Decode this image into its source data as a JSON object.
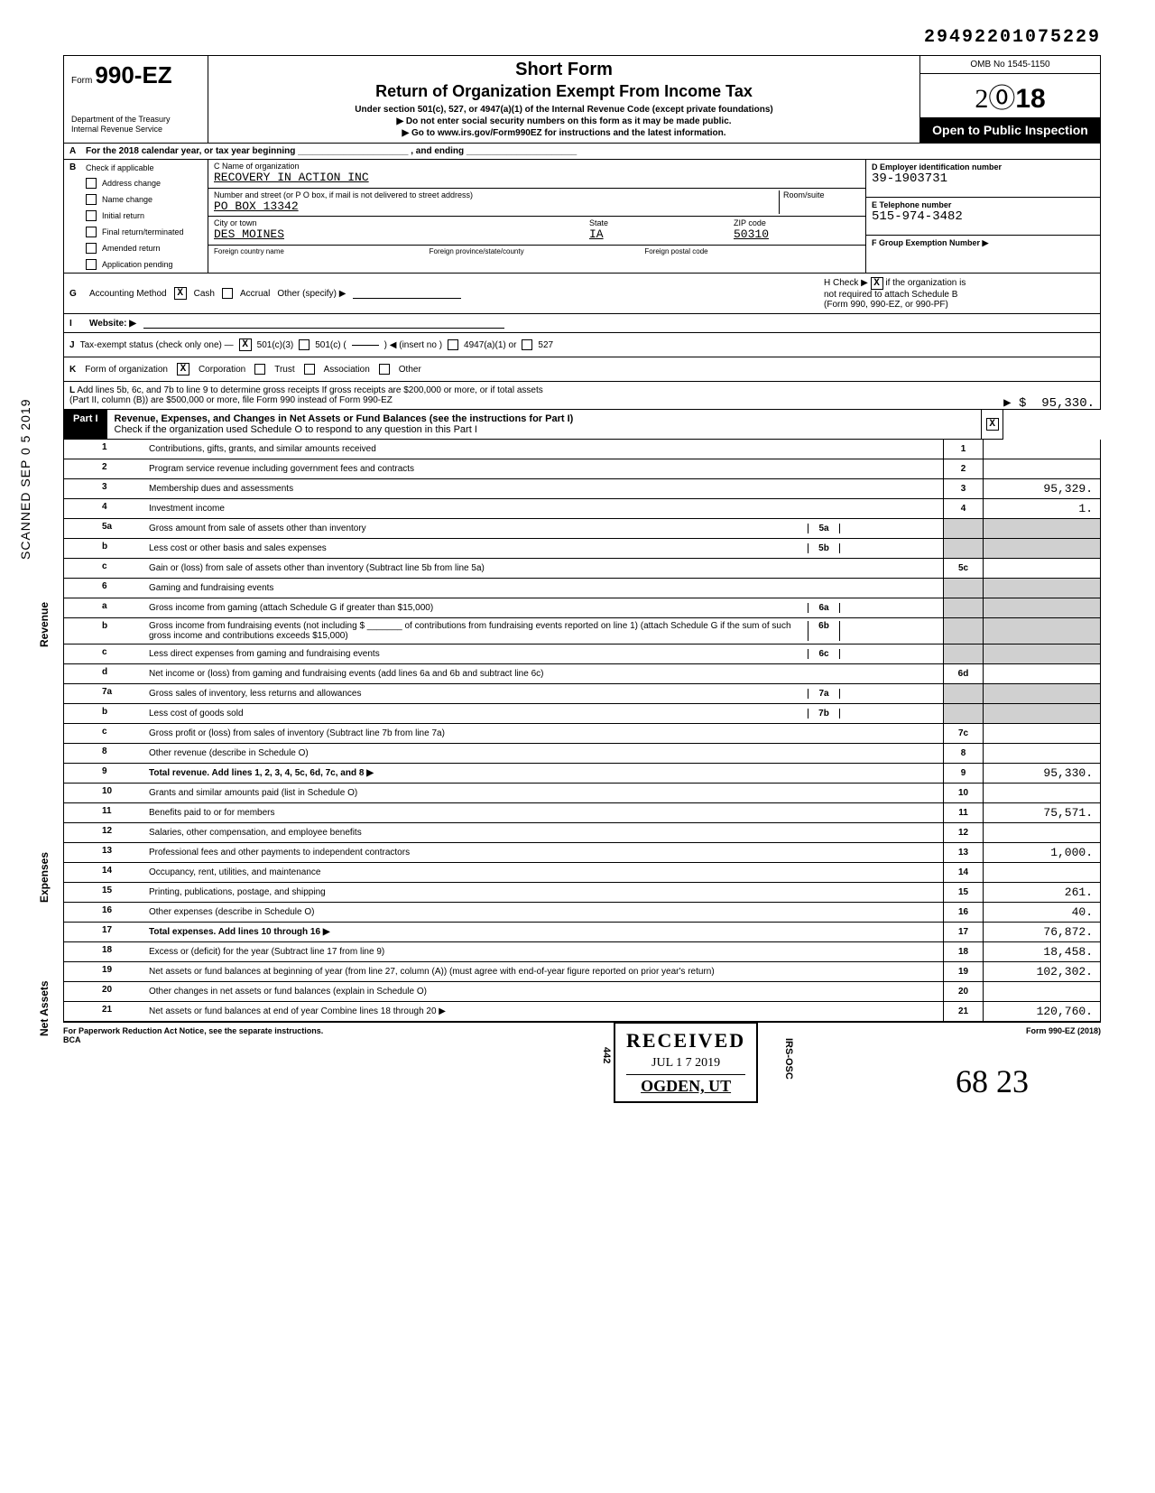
{
  "dln": "29492201075229",
  "header": {
    "form_prefix": "Form",
    "form_number": "990-EZ",
    "title1": "Short Form",
    "title2": "Return of Organization Exempt From Income Tax",
    "subtitle": "Under section 501(c), 527, or 4947(a)(1) of the Internal Revenue Code (except private foundations)",
    "arrow1": "▶  Do not enter social security numbers on this form as it may be made public.",
    "arrow2": "▶  Go to www.irs.gov/Form990EZ for instructions and the latest information.",
    "dept": "Department of the Treasury",
    "irs": "Internal Revenue Service",
    "omb": "OMB No 1545-1150",
    "year": "2018",
    "open": "Open to Public Inspection"
  },
  "rowA": "For the 2018 calendar year, or tax year beginning ______________________ , and ending ______________________",
  "blockB": {
    "b_label": "B",
    "check_label": "Check if applicable",
    "items": [
      "Address change",
      "Name change",
      "Initial return",
      "Final return/terminated",
      "Amended return",
      "Application pending"
    ],
    "c_label": "C  Name of organization",
    "org_name": "RECOVERY IN ACTION INC",
    "street_label": "Number and street (or P O box, if mail is not delivered to street address)",
    "room_label": "Room/suite",
    "street": "PO BOX 13342",
    "city_label": "City or town",
    "state_label": "State",
    "zip_label": "ZIP code",
    "city": "DES MOINES",
    "state": "IA",
    "zip": "50310",
    "foreign1": "Foreign country name",
    "foreign2": "Foreign province/state/county",
    "foreign3": "Foreign postal code",
    "d_label": "D  Employer identification number",
    "ein": "39-1903731",
    "e_label": "E  Telephone number",
    "phone": "515-974-3482",
    "f_label": "F  Group Exemption Number ▶"
  },
  "rowG": {
    "g": "G",
    "acct": "Accounting Method",
    "cash": "Cash",
    "accrual": "Accrual",
    "other": "Other (specify)  ▶",
    "i": "I",
    "website": "Website: ▶",
    "h": "H  Check ▶",
    "h_txt1": "if the organization is",
    "h_txt2": "not required to attach Schedule B",
    "h_txt3": "(Form 990, 990-EZ, or 990-PF)"
  },
  "rowJ": {
    "j": "J",
    "txt": "Tax-exempt status (check only one) —",
    "opt1": "501(c)(3)",
    "opt2": "501(c) (",
    "opt2b": ") ◀ (insert no )",
    "opt3": "4947(a)(1) or",
    "opt4": "527"
  },
  "rowK": {
    "k": "K",
    "txt": "Form of organization",
    "corp": "Corporation",
    "trust": "Trust",
    "assoc": "Association",
    "other": "Other"
  },
  "rowL": {
    "l": "L",
    "txt1": "Add lines 5b, 6c, and 7b to line 9 to determine gross receipts  If gross receipts are $200,000 or more, or if total assets",
    "txt2": "(Part II, column (B)) are $500,000 or more, file Form 990 instead of Form 990-EZ",
    "arrow": "▶ $",
    "amt": "95,330."
  },
  "part1": {
    "tag": "Part I",
    "title": "Revenue, Expenses, and Changes in Net Assets or Fund Balances (see the instructions for Part I)",
    "sub": "Check if the organization used Schedule O to respond to any question in this Part I"
  },
  "sections": {
    "revenue": "Revenue",
    "expenses": "Expenses",
    "netassets": "Net Assets"
  },
  "lines": [
    {
      "n": "1",
      "d": "Contributions, gifts, grants, and similar amounts received",
      "box": "1",
      "amt": ""
    },
    {
      "n": "2",
      "d": "Program service revenue including government fees and contracts",
      "box": "2",
      "amt": ""
    },
    {
      "n": "3",
      "d": "Membership dues and assessments",
      "box": "3",
      "amt": "95,329."
    },
    {
      "n": "4",
      "d": "Investment income",
      "box": "4",
      "amt": "1."
    },
    {
      "n": "5a",
      "d": "Gross amount from sale of assets other than inventory",
      "sub": "5a"
    },
    {
      "n": "b",
      "d": "Less cost or other basis and sales expenses",
      "sub": "5b"
    },
    {
      "n": "c",
      "d": "Gain or (loss) from sale of assets other than inventory (Subtract line 5b from line 5a)",
      "box": "5c",
      "amt": ""
    },
    {
      "n": "6",
      "d": "Gaming and fundraising events"
    },
    {
      "n": "a",
      "d": "Gross income from gaming (attach Schedule G if greater than $15,000)",
      "sub": "6a"
    },
    {
      "n": "b",
      "d": "Gross income from fundraising events (not including   $ _______ of contributions from fundraising events reported on line 1) (attach Schedule G if the sum of such gross income and contributions exceeds $15,000)",
      "sub": "6b"
    },
    {
      "n": "c",
      "d": "Less direct expenses from gaming and fundraising events",
      "sub": "6c"
    },
    {
      "n": "d",
      "d": "Net income or (loss) from gaming and fundraising events (add lines 6a and 6b and subtract line 6c)",
      "box": "6d",
      "amt": ""
    },
    {
      "n": "7a",
      "d": "Gross sales of inventory, less returns and allowances",
      "sub": "7a"
    },
    {
      "n": "b",
      "d": "Less cost of goods sold",
      "sub": "7b"
    },
    {
      "n": "c",
      "d": "Gross profit or (loss) from sales of inventory (Subtract line 7b from line 7a)",
      "box": "7c",
      "amt": ""
    },
    {
      "n": "8",
      "d": "Other revenue (describe in Schedule O)",
      "box": "8",
      "amt": ""
    },
    {
      "n": "9",
      "d": "Total revenue. Add lines 1, 2, 3, 4, 5c, 6d, 7c, and 8",
      "box": "9",
      "amt": "95,330.",
      "bold": true,
      "arrow": true
    },
    {
      "n": "10",
      "d": "Grants and similar amounts paid (list in Schedule O)",
      "box": "10",
      "amt": ""
    },
    {
      "n": "11",
      "d": "Benefits paid to or for members",
      "box": "11",
      "amt": "75,571."
    },
    {
      "n": "12",
      "d": "Salaries, other compensation, and employee benefits",
      "box": "12",
      "amt": ""
    },
    {
      "n": "13",
      "d": "Professional fees and other payments to independent contractors",
      "box": "13",
      "amt": "1,000."
    },
    {
      "n": "14",
      "d": "Occupancy, rent, utilities, and maintenance",
      "box": "14",
      "amt": ""
    },
    {
      "n": "15",
      "d": "Printing, publications, postage, and shipping",
      "box": "15",
      "amt": "261."
    },
    {
      "n": "16",
      "d": "Other expenses (describe in Schedule O)",
      "box": "16",
      "amt": "40."
    },
    {
      "n": "17",
      "d": "Total expenses. Add lines 10 through 16",
      "box": "17",
      "amt": "76,872.",
      "bold": true,
      "arrow": true
    },
    {
      "n": "18",
      "d": "Excess or (deficit) for the year (Subtract line 17 from line 9)",
      "box": "18",
      "amt": "18,458."
    },
    {
      "n": "19",
      "d": "Net assets or fund balances at beginning of year (from line 27, column (A)) (must agree with end-of-year figure reported on prior year's return)",
      "box": "19",
      "amt": "102,302."
    },
    {
      "n": "20",
      "d": "Other changes in net assets or fund balances (explain in Schedule O)",
      "box": "20",
      "amt": ""
    },
    {
      "n": "21",
      "d": "Net assets or fund balances at end of year  Combine lines 18 through 20",
      "box": "21",
      "amt": "120,760.",
      "arrow": true
    }
  ],
  "footer": {
    "left": "For Paperwork Reduction Act Notice, see the separate instructions.",
    "bca": "BCA",
    "right": "Form 990-EZ (2018)"
  },
  "sidebar": "SCANNED SEP 0 5 2019",
  "stamp": {
    "received": "RECEIVED",
    "date": "JUL 1 7 2019",
    "loc": "OGDEN, UT",
    "side1": "442",
    "side2": "IRS-OSC"
  },
  "handwriting": "68    23"
}
